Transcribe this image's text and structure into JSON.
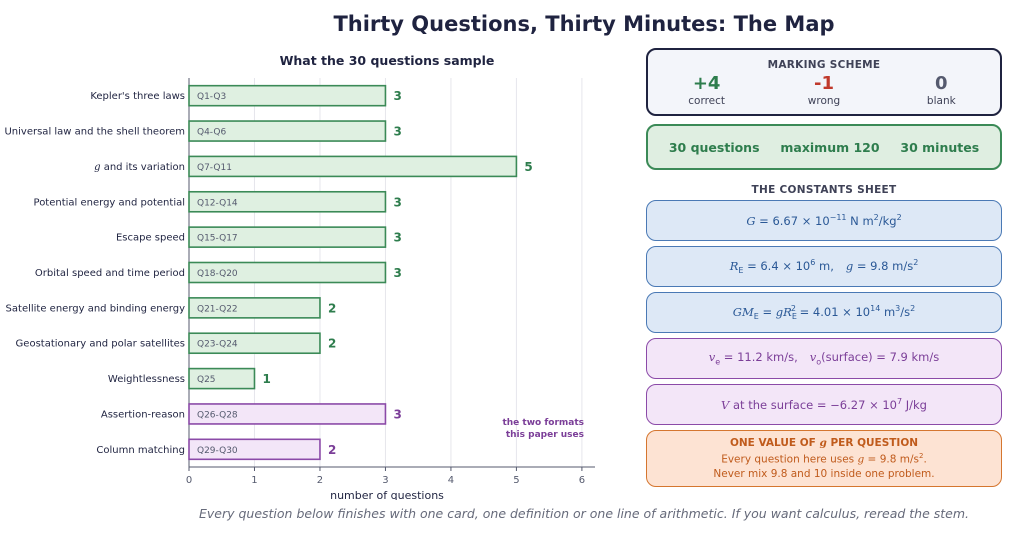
{
  "title": "Thirty Questions, Thirty Minutes: The Map",
  "footer": "Every question below finishes with one card, one definition or one line of arithmetic. If you want calculus, reread the stem.",
  "chart_data": {
    "type": "bar",
    "orientation": "horizontal",
    "title": "What the 30 questions sample",
    "xlabel": "number of questions",
    "xlim": [
      0,
      6.2
    ],
    "xticks": [
      0,
      1,
      2,
      3,
      4,
      5,
      6
    ],
    "grid": "vertical",
    "categories": [
      {
        "pre": "",
        "it": "",
        "post": "Kepler's three laws"
      },
      {
        "pre": "",
        "it": "",
        "post": "Universal law and the shell theorem"
      },
      {
        "pre": "",
        "it": "g",
        "post": " and its variation"
      },
      {
        "pre": "",
        "it": "",
        "post": "Potential energy and potential"
      },
      {
        "pre": "",
        "it": "",
        "post": "Escape speed"
      },
      {
        "pre": "",
        "it": "",
        "post": "Orbital speed and time period"
      },
      {
        "pre": "",
        "it": "",
        "post": "Satellite energy and binding energy"
      },
      {
        "pre": "",
        "it": "",
        "post": "Geostationary and polar satellites"
      },
      {
        "pre": "",
        "it": "",
        "post": "Weightlessness"
      },
      {
        "pre": "",
        "it": "",
        "post": "Assertion-reason"
      },
      {
        "pre": "",
        "it": "",
        "post": "Column matching"
      }
    ],
    "ranges": [
      "Q1-Q3",
      "Q4-Q6",
      "Q7-Q11",
      "Q12-Q14",
      "Q15-Q17",
      "Q18-Q20",
      "Q21-Q22",
      "Q23-Q24",
      "Q25",
      "Q26-Q28",
      "Q29-Q30"
    ],
    "values": [
      3,
      3,
      5,
      3,
      3,
      3,
      2,
      2,
      1,
      3,
      2
    ],
    "groups": [
      "topic",
      "topic",
      "topic",
      "topic",
      "topic",
      "topic",
      "topic",
      "topic",
      "topic",
      "format",
      "format"
    ],
    "annotation": [
      "the two formats",
      "this paper uses"
    ],
    "colors": {
      "topic_fill": "#dff0e1",
      "topic_stroke": "#3b8a57",
      "topic_label": "#2e7d4d",
      "format_fill": "#f3e6f8",
      "format_stroke": "#8b4aa8",
      "format_label": "#7b3e98"
    }
  },
  "marking_scheme": {
    "title": "MARKING SCHEME",
    "items": [
      {
        "value": "+4",
        "label": "correct",
        "color": "#2e7d4d"
      },
      {
        "value": "-1",
        "label": "wrong",
        "color": "#c0392b"
      },
      {
        "value": "0",
        "label": "blank",
        "color": "#555a6e"
      }
    ]
  },
  "summary": {
    "questions": "30 questions",
    "maximum": "maximum 120",
    "time": "30 minutes"
  },
  "constants": {
    "title": "THE CONSTANTS SHEET",
    "G": {
      "lhs": "G",
      "eq": " = 6.67 × 10",
      "exp": "−11",
      "unit": " N m",
      "unit_exp": "2",
      "unit_tail": "/kg",
      "unit_tail_exp": "2"
    },
    "RE": {
      "sym": "R",
      "sub": "E",
      "eq": " = 6.4 × 10",
      "exp": "6",
      "unit": " m,",
      "g_sym": "g",
      "g_eq": " = 9.8 m/s",
      "g_exp": "2"
    },
    "GME": {
      "sym": "GM",
      "sub": "E",
      "eq": " = ",
      "g": "g",
      "R": "R",
      "Rsub": "E",
      "Rexp": "2",
      "val": " = 4.01 × 10",
      "exp": "14",
      "unit": " m",
      "unit_exp": "3",
      "unit_tail": "/s",
      "unit_tail_exp": "2"
    },
    "speeds": {
      "ve": "v",
      "ve_sub": "e",
      "ve_val": " = 11.2 km/s,",
      "vo": "v",
      "vo_sub": "o",
      "vo_val": "(surface)  = 7.9 km/s"
    },
    "V": {
      "sym": "V",
      "text": " at the surface  = −6.27 × 10",
      "exp": "7",
      "unit": " J/kg"
    }
  },
  "g_note": {
    "title_pre": "ONE VALUE OF ",
    "title_it": "g",
    "title_post": " PER QUESTION",
    "line1_pre": "Every question here uses ",
    "line1_it": "g",
    "line1_val": " = 9.8 m/s",
    "line1_exp": "2",
    "line1_post": ".",
    "line2": "Never mix 9.8 and 10 inside one problem."
  }
}
